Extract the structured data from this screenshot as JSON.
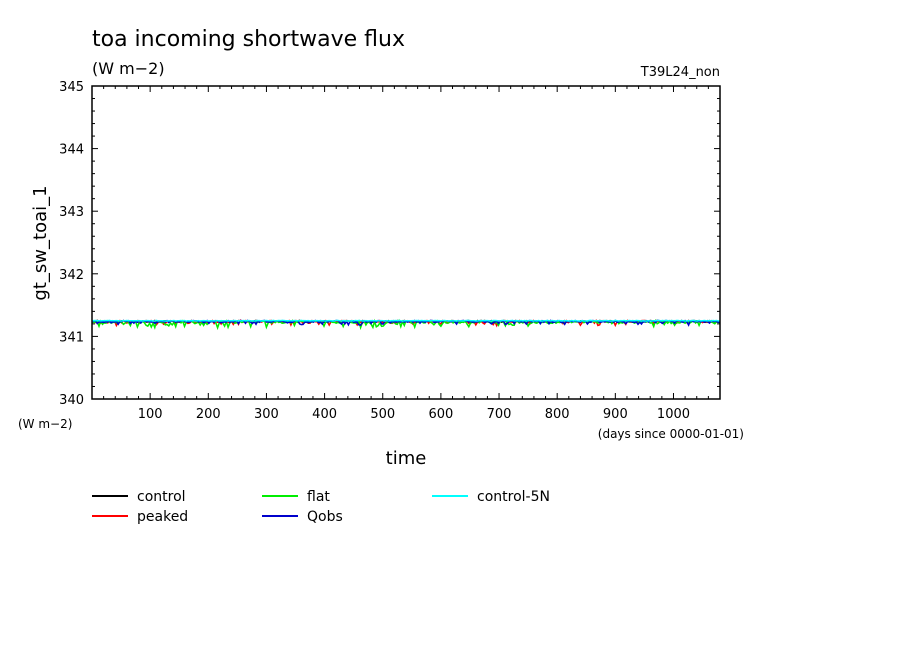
{
  "chart_data": {
    "type": "line",
    "title": "toa incoming shortwave flux",
    "units_label": "(W m−2)",
    "run_label": "T39L24_non",
    "ylabel": "gt_sw_toai_1",
    "y_units_label": "(W m−2)",
    "xlabel": "time",
    "x_units_label": "(days since 0000-01-01)",
    "xlim": [
      0,
      1080
    ],
    "ylim": [
      340,
      345
    ],
    "x_ticks": [
      100,
      200,
      300,
      400,
      500,
      600,
      700,
      800,
      900,
      1000
    ],
    "y_ticks": [
      340,
      341,
      342,
      343,
      344,
      345
    ],
    "grid": false,
    "legend_position": "bottom",
    "series": [
      {
        "name": "control",
        "color": "#000000",
        "base": 341.24,
        "noise": 0.03,
        "dips": 0.0
      },
      {
        "name": "peaked",
        "color": "#ff0000",
        "base": 341.24,
        "noise": 0.03,
        "dips": 0.06
      },
      {
        "name": "flat",
        "color": "#00ee00",
        "base": 341.23,
        "noise": 0.04,
        "dips": 0.08
      },
      {
        "name": "Qobs",
        "color": "#0000cc",
        "base": 341.24,
        "noise": 0.03,
        "dips": 0.05
      },
      {
        "name": "control-5N",
        "color": "#00ffff",
        "base": 341.25,
        "noise": 0.01,
        "dips": 0.0
      }
    ]
  }
}
